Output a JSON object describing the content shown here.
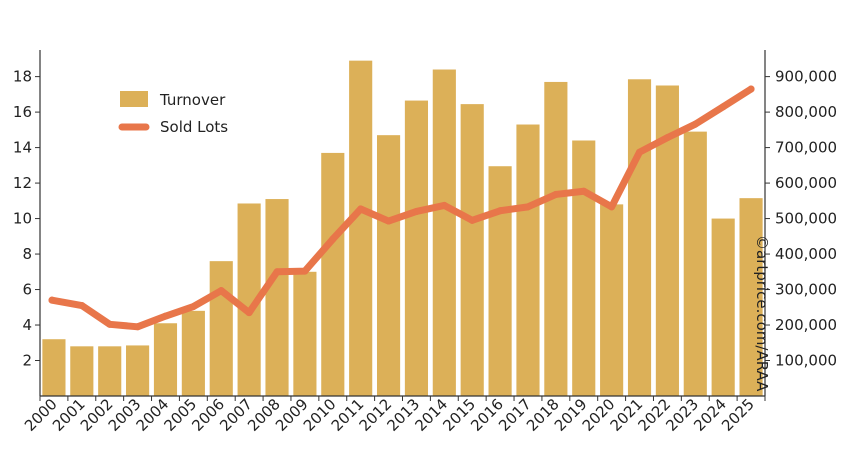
{
  "chart_data": {
    "type": "bar",
    "categories": [
      "2000",
      "2001",
      "2002",
      "2003",
      "2004",
      "2005",
      "2006",
      "2007",
      "2008",
      "2009",
      "2010",
      "2011",
      "2012",
      "2013",
      "2014",
      "2015",
      "2016",
      "2017",
      "2018",
      "2019",
      "2020",
      "2021",
      "2022",
      "2023",
      "2024",
      "2025"
    ],
    "series": [
      {
        "name": "Turnover",
        "type": "bar",
        "axis": "left",
        "color": "#dcb058",
        "values": [
          3.2,
          2.8,
          2.8,
          2.85,
          4.1,
          4.8,
          7.6,
          10.85,
          11.1,
          7.0,
          13.7,
          18.9,
          14.7,
          16.65,
          18.4,
          16.45,
          12.95,
          15.3,
          17.7,
          14.4,
          10.8,
          17.85,
          17.5,
          14.9,
          10.0,
          11.15
        ]
      },
      {
        "name": "Sold Lots",
        "type": "line",
        "axis": "right",
        "color": "#e8764a",
        "values": [
          270000,
          255000,
          202000,
          195000,
          225000,
          252000,
          297000,
          235000,
          350000,
          352000,
          442000,
          527000,
          493000,
          520000,
          537000,
          495000,
          522000,
          533000,
          568000,
          577000,
          533000,
          687000,
          728000,
          766000,
          815000,
          865000
        ]
      }
    ],
    "left_axis": {
      "range": [
        0,
        19.5
      ],
      "ticks": [
        2,
        4,
        6,
        8,
        10,
        12,
        14,
        16,
        18
      ]
    },
    "right_axis": {
      "range": [
        0,
        975000
      ],
      "ticks": [
        100000,
        200000,
        300000,
        400000,
        500000,
        600000,
        700000,
        800000,
        900000
      ],
      "tick_labels": [
        "100,000",
        "200,000",
        "300,000",
        "400,000",
        "500,000",
        "600,000",
        "700,000",
        "800,000",
        "900,000"
      ]
    },
    "legend": {
      "position": "top-left",
      "items": [
        "Turnover",
        "Sold Lots"
      ]
    },
    "credit": "©artprice.com/ARAA",
    "grid": false
  }
}
